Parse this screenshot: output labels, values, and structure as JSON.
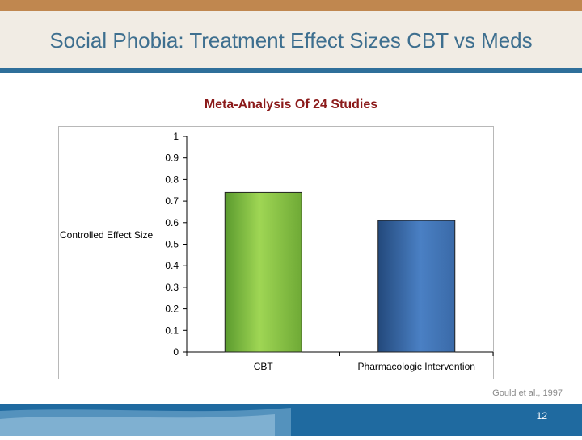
{
  "slide": {
    "title": "Social Phobia: Treatment Effect Sizes CBT vs Meds",
    "citation": "Gould et al., 1997",
    "page_number": "12"
  },
  "colors": {
    "accent_top": "#c0874f",
    "title_text": "#3e6f8f",
    "band_line": "#2f6f9a",
    "chart_title": "#8b1a1a",
    "footer": "#1f6aa0"
  },
  "chart_data": {
    "type": "bar",
    "title": "Meta-Analysis Of 24 Studies",
    "xlabel": "",
    "ylabel": "Controlled Effect Size",
    "categories": [
      "CBT",
      "Pharmacologic Intervention"
    ],
    "values": [
      0.74,
      0.61
    ],
    "bar_colors": [
      "#8bc34a",
      "#3d6fb0"
    ],
    "ylim": [
      0,
      1
    ],
    "yticks": [
      "0",
      "0.1",
      "0.2",
      "0.3",
      "0.4",
      "0.5",
      "0.6",
      "0.7",
      "0.8",
      "0.9",
      "1"
    ],
    "grid": false,
    "legend": "none"
  }
}
